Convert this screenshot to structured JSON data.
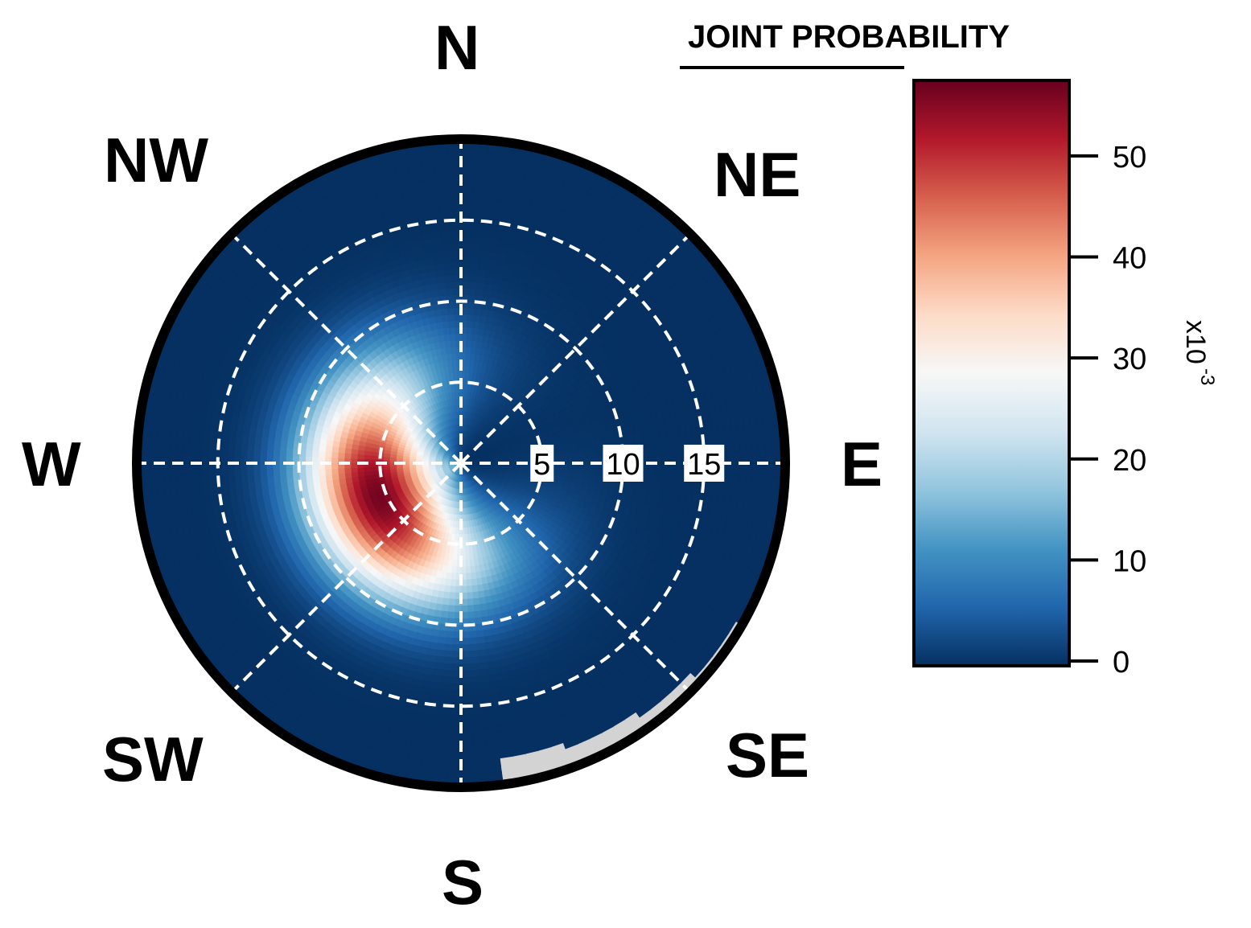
{
  "chart_data": {
    "type": "heatmap",
    "subtype": "polar",
    "title": "JOINT PROBABILITY",
    "directions": [
      "N",
      "NE",
      "E",
      "SE",
      "S",
      "SW",
      "W",
      "NW"
    ],
    "radial_ticks": [
      5,
      10,
      15
    ],
    "radial_range": [
      0,
      20
    ],
    "grid": true,
    "gridlines": "white dashed",
    "peak": {
      "direction_deg": 248,
      "radius": 5.5,
      "value": 56
    },
    "low_value_color": "#d3d3d3",
    "low_value_region": "outer edge, south-east sector",
    "colorbar": {
      "label": "x10",
      "exponent": "-3",
      "ticks": [
        0,
        10,
        20,
        30,
        40,
        50
      ],
      "range": [
        0,
        57
      ],
      "colormap": [
        "#053061",
        "#2166ac",
        "#4393c3",
        "#92c5de",
        "#d1e5f0",
        "#f7f7f7",
        "#fddbc7",
        "#f4a582",
        "#d6604d",
        "#b2182b",
        "#67001f"
      ]
    }
  }
}
